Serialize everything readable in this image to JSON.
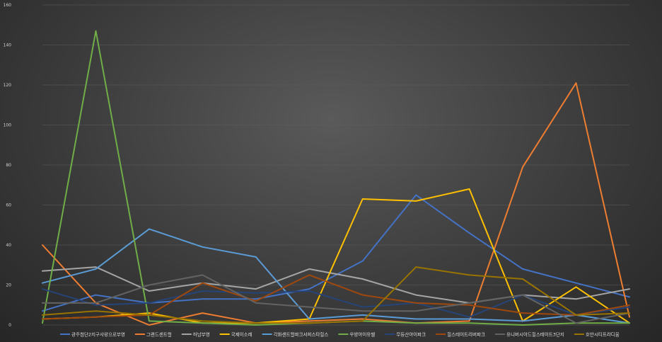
{
  "chart_data": {
    "type": "line",
    "title": "",
    "xlabel": "",
    "ylabel": "",
    "ylim": [
      0,
      160
    ],
    "yticks": [
      0,
      20,
      40,
      60,
      80,
      100,
      120,
      140,
      160
    ],
    "x": [
      1,
      2,
      3,
      4,
      5,
      6,
      7,
      8,
      9,
      10,
      11,
      12
    ],
    "grid": true,
    "legend_position": "bottom",
    "series": [
      {
        "name": "광주첨단2지구사랑으로부영",
        "color": "#4472c4",
        "values": [
          7,
          15,
          11,
          13,
          13,
          18,
          32,
          65,
          46,
          28,
          21,
          14
        ]
      },
      {
        "name": "그랜드센트럴",
        "color": "#ed7d31",
        "values": [
          40,
          11,
          0,
          6,
          1,
          2,
          3,
          1,
          2,
          79,
          121,
          4
        ]
      },
      {
        "name": "하남부영",
        "color": "#a5a5a5",
        "values": [
          27,
          29,
          17,
          21,
          18,
          28,
          23,
          15,
          11,
          15,
          13,
          18
        ]
      },
      {
        "name": "국제이소레",
        "color": "#ffc000",
        "values": [
          3,
          4,
          6,
          1,
          1,
          3,
          63,
          62,
          68,
          2,
          19,
          1
        ]
      },
      {
        "name": "각화센트럴파크서희스타힐스",
        "color": "#5b9bd5",
        "values": [
          21,
          28,
          48,
          39,
          34,
          3,
          5,
          3,
          3,
          2,
          5,
          1
        ]
      },
      {
        "name": "우방아이유쉘",
        "color": "#70ad47",
        "values": [
          1,
          147,
          2,
          1,
          0,
          1,
          2,
          1,
          1,
          0,
          1,
          1
        ]
      },
      {
        "name": "무등산아이파크",
        "color": "#264478",
        "values": [
          18,
          10,
          11,
          17,
          16,
          17,
          9,
          11,
          4,
          15,
          5,
          9
        ]
      },
      {
        "name": "힐스테이트리버파크",
        "color": "#9e480e",
        "values": [
          3,
          4,
          5,
          21,
          12,
          25,
          15,
          11,
          10,
          6,
          5,
          10
        ]
      },
      {
        "name": "유니버시아드힐스테이트3단지",
        "color": "#636363",
        "values": [
          11,
          11,
          20,
          25,
          11,
          9,
          7,
          7,
          11,
          15,
          1,
          6
        ]
      },
      {
        "name": "호반시티프라디움",
        "color": "#997300",
        "values": [
          5,
          7,
          5,
          2,
          1,
          1,
          2,
          29,
          25,
          23,
          5,
          6
        ]
      }
    ]
  }
}
